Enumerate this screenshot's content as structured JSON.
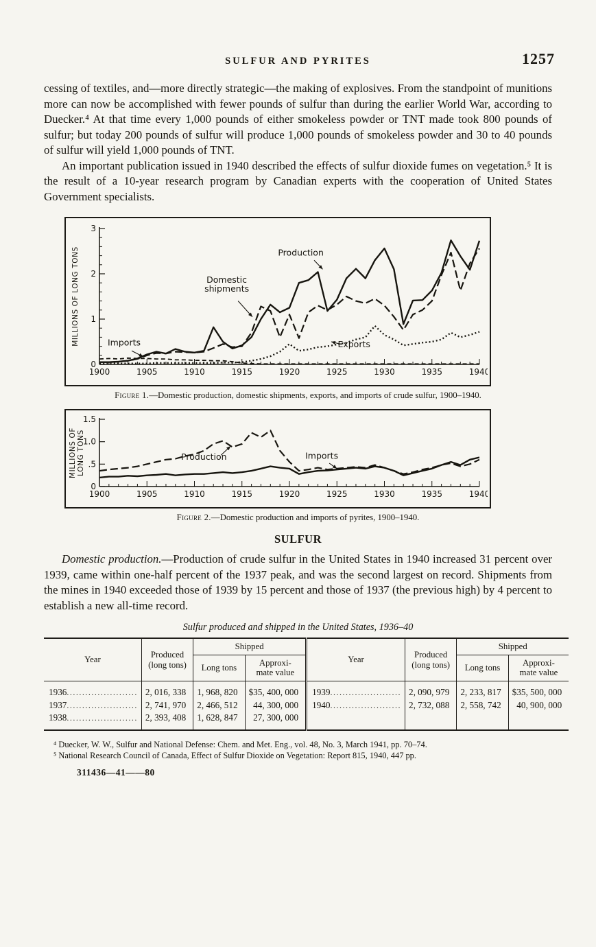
{
  "page": {
    "running_head": "SULFUR AND PYRITES",
    "folio": "1257"
  },
  "paragraphs": {
    "p1": "cessing of textiles, and—more directly strategic—the making of explosives. From the standpoint of munitions more can now be accomplished with fewer pounds of sulfur than during the earlier World War, according to Duecker.⁴ At that time every 1,000 pounds of either smokeless powder or TNT made took 800 pounds of sulfur; but today 200 pounds of sulfur will produce 1,000 pounds of smokeless powder and 30 to 40 pounds of sulfur will yield 1,000 pounds of TNT.",
    "p2": "An important publication issued in 1940 described the effects of sulfur dioxide fumes on vegetation.⁵ It is the result of a 10-year research program by Canadian experts with the cooperation of United States Government specialists.",
    "sulfur_heading": "SULFUR",
    "p3_lead": "Domestic production.",
    "p3_rest": "—Production of crude sulfur in the United States in 1940 increased 31 percent over 1939, came within one-half percent of the 1937 peak, and was the second largest on record. Shipments from the mines in 1940 exceeded those of 1939 by 15 percent and those of 1937 (the previous high) by 4 percent to establish a new all-time record."
  },
  "figure1": {
    "caption_label": "Figure 1.",
    "caption_text": "—Domestic production, domestic shipments, exports, and imports of crude sulfur, 1900–1940."
  },
  "figure2": {
    "caption_label": "Figure 2.",
    "caption_text": "—Domestic production and imports of pyrites, 1900–1940."
  },
  "chart_data": [
    {
      "type": "line",
      "title": "Domestic production, domestic shipments, exports, and imports of crude sulfur, 1900-1940",
      "ylabel": "MILLIONS OF LONG TONS",
      "xlabel": "",
      "x_start": 1900,
      "x_end": 1940,
      "x_major": 5,
      "ylim": [
        0,
        3
      ],
      "y_major": 1,
      "y_minor": 0.2,
      "y_tick_labels": [
        "0",
        "1",
        "2",
        "3"
      ],
      "grid": false,
      "legend": "inline-labels",
      "series": [
        {
          "name": "Production",
          "style": "solid",
          "values": [
            0.05,
            0.05,
            0.06,
            0.08,
            0.13,
            0.22,
            0.28,
            0.24,
            0.34,
            0.28,
            0.26,
            0.3,
            0.82,
            0.5,
            0.35,
            0.42,
            0.6,
            1.0,
            1.32,
            1.15,
            1.25,
            1.8,
            1.86,
            2.04,
            1.18,
            1.43,
            1.9,
            2.11,
            1.9,
            2.3,
            2.56,
            2.1,
            0.89,
            1.41,
            1.42,
            1.63,
            2.02,
            2.74,
            2.39,
            2.09,
            2.73
          ]
        },
        {
          "name": "Domestic shipments",
          "style": "long-dash",
          "values": [
            0.05,
            0.05,
            0.06,
            0.08,
            0.12,
            0.2,
            0.25,
            0.24,
            0.28,
            0.27,
            0.26,
            0.28,
            0.36,
            0.45,
            0.38,
            0.4,
            0.7,
            1.28,
            1.18,
            0.6,
            1.1,
            0.58,
            1.15,
            1.3,
            1.2,
            1.32,
            1.5,
            1.4,
            1.35,
            1.45,
            1.3,
            1.05,
            0.76,
            1.1,
            1.2,
            1.4,
            1.97,
            2.47,
            1.63,
            2.23,
            2.56
          ]
        },
        {
          "name": "Exports",
          "style": "dotted",
          "values": [
            0.02,
            0.02,
            0.02,
            0.02,
            0.02,
            0.02,
            0.03,
            0.03,
            0.03,
            0.03,
            0.03,
            0.03,
            0.03,
            0.04,
            0.04,
            0.05,
            0.08,
            0.12,
            0.18,
            0.28,
            0.45,
            0.3,
            0.33,
            0.38,
            0.4,
            0.44,
            0.48,
            0.55,
            0.6,
            0.85,
            0.65,
            0.55,
            0.42,
            0.45,
            0.48,
            0.5,
            0.55,
            0.7,
            0.6,
            0.65,
            0.72
          ]
        },
        {
          "name": "Imports",
          "style": "short-dash",
          "values": [
            0.12,
            0.13,
            0.12,
            0.14,
            0.13,
            0.13,
            0.12,
            0.12,
            0.1,
            0.1,
            0.09,
            0.09,
            0.08,
            0.08,
            0.06,
            0.03,
            0.02,
            0.01,
            0.01,
            0.01,
            0.01,
            0.01,
            0.01,
            0.01,
            0.01,
            0.01,
            0.01,
            0.01,
            0.01,
            0.01,
            0.01,
            0.01,
            0.01,
            0.01,
            0.01,
            0.01,
            0.01,
            0.01,
            0.01,
            0.01,
            0.01
          ]
        }
      ],
      "annotations": [
        {
          "text": [
            "Imports"
          ],
          "x": 1902.6,
          "y": 0.42,
          "arrow": [
            1903.4,
            0.3,
            1904.6,
            0.17
          ]
        },
        {
          "text": [
            "Domestic",
            "shipments"
          ],
          "x": 1913.4,
          "y": 1.8,
          "arrow": [
            1914.6,
            1.4,
            1916.1,
            1.05
          ]
        },
        {
          "text": [
            "Production"
          ],
          "x": 1921.2,
          "y": 2.4,
          "arrow": [
            1922.6,
            2.3,
            1923.5,
            2.1
          ]
        },
        {
          "text": [
            "Exports"
          ],
          "x": 1926.8,
          "y": 0.38,
          "arrow": [
            1925.5,
            0.44,
            1924.4,
            0.5
          ]
        }
      ]
    },
    {
      "type": "line",
      "title": "Domestic production and imports of pyrites, 1900-1940",
      "ylabel": "MILLIONS OF\nLONG TONS",
      "xlabel": "",
      "x_start": 1900,
      "x_end": 1940,
      "x_major": 5,
      "ylim": [
        0,
        1.5
      ],
      "y_major": 0.5,
      "y_minor": null,
      "y_tick_labels": [
        "0",
        ".5",
        "1.0",
        "1.5"
      ],
      "grid": false,
      "legend": "inline-labels",
      "series": [
        {
          "name": "Production",
          "style": "long-dash",
          "values": [
            0.35,
            0.38,
            0.4,
            0.42,
            0.45,
            0.5,
            0.55,
            0.6,
            0.62,
            0.68,
            0.72,
            0.8,
            0.95,
            1.02,
            0.88,
            0.95,
            1.2,
            1.1,
            1.25,
            0.8,
            0.55,
            0.35,
            0.38,
            0.42,
            0.38,
            0.4,
            0.42,
            0.44,
            0.42,
            0.48,
            0.42,
            0.35,
            0.28,
            0.32,
            0.38,
            0.42,
            0.48,
            0.52,
            0.45,
            0.5,
            0.6
          ]
        },
        {
          "name": "Imports",
          "style": "solid",
          "values": [
            0.2,
            0.22,
            0.22,
            0.24,
            0.23,
            0.25,
            0.26,
            0.28,
            0.25,
            0.27,
            0.28,
            0.28,
            0.3,
            0.32,
            0.3,
            0.32,
            0.35,
            0.4,
            0.45,
            0.42,
            0.4,
            0.28,
            0.32,
            0.35,
            0.36,
            0.38,
            0.4,
            0.42,
            0.4,
            0.45,
            0.42,
            0.35,
            0.25,
            0.3,
            0.35,
            0.4,
            0.48,
            0.55,
            0.48,
            0.6,
            0.65
          ]
        }
      ],
      "annotations": [
        {
          "text": [
            "Production"
          ],
          "x": 1911.0,
          "y": 0.6,
          "arrow": [
            1912.8,
            0.7,
            1913.8,
            0.9
          ]
        },
        {
          "text": [
            "Imports"
          ],
          "x": 1923.4,
          "y": 0.62,
          "arrow": [
            1924.2,
            0.52,
            1925.0,
            0.4
          ]
        }
      ]
    }
  ],
  "table": {
    "title": "Sulfur produced and shipped in the United States, 1936–40",
    "headers": {
      "year": "Year",
      "produced": "Produced\n(long tons)",
      "shipped": "Shipped",
      "long_tons": "Long tons",
      "approx_value": "Approxi-\nmate value"
    },
    "rows": [
      {
        "left": [
          "1936",
          "2, 016, 338",
          "1, 968, 820",
          "$35, 400, 000"
        ],
        "right": [
          "1939",
          "2, 090, 979",
          "2, 233, 817",
          "$35, 500, 000"
        ]
      },
      {
        "left": [
          "1937",
          "2, 741, 970",
          "2, 466, 512",
          "44, 300, 000"
        ],
        "right": [
          "1940",
          "2, 732, 088",
          "2, 558, 742",
          "40, 900, 000"
        ]
      },
      {
        "left": [
          "1938",
          "2, 393, 408",
          "1, 628, 847",
          "27, 300, 000"
        ],
        "right": [
          "",
          "",
          "",
          ""
        ]
      }
    ]
  },
  "footnotes": [
    "⁴ Duecker, W. W., Sulfur and National Defense: Chem. and Met. Eng., vol. 48, No. 3, March 1941, pp. 70–74.",
    "⁵ National Research Council of Canada, Effect of Sulfur Dioxide on Vegetation: Report 815, 1940, 447 pp."
  ],
  "signature": "311436—41——80"
}
